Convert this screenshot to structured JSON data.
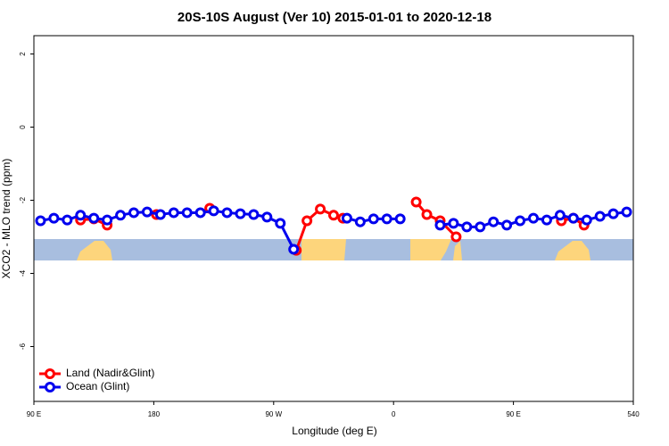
{
  "chart_data": {
    "type": "line",
    "title": "20S-10S August (Ver 10)   2015-01-01 to 2020-12-18",
    "x_label": "Longitude (deg E)",
    "y_label": "XCO2 - MLO trend (ppm)",
    "xlim": [
      90,
      540
    ],
    "ylim": [
      -7.5,
      2.5
    ],
    "xticks": [
      {
        "value": 90,
        "label": "90 E"
      },
      180,
      {
        "value": 270,
        "label": "90 W"
      },
      {
        "value": 360,
        "label": "0"
      },
      {
        "value": 450,
        "label": "90 E"
      },
      540
    ],
    "yticks": [
      -6,
      -4,
      -2,
      0,
      2
    ],
    "legend": "bottom-left",
    "series": [
      {
        "name": "Land (Nadir&Glint)",
        "color": "#ff0000",
        "x": [
          125,
          135,
          145,
          null,
          182,
          null,
          222,
          null,
          287,
          295,
          305,
          315,
          322,
          null,
          377,
          385,
          395,
          407,
          null,
          486,
          495,
          503
        ],
        "values": [
          -2.54,
          -2.51,
          -2.68,
          null,
          -2.39,
          null,
          -2.22,
          null,
          -3.37,
          -2.56,
          -2.24,
          -2.41,
          -2.49,
          null,
          -2.05,
          -2.39,
          -2.56,
          -3.0,
          null,
          -2.56,
          -2.49,
          -2.68
        ]
      },
      {
        "name": "Ocean (Glint)",
        "color": "#0000ee",
        "x": [
          95,
          105,
          115,
          125,
          135,
          145,
          155,
          165,
          175,
          185,
          195,
          205,
          215,
          225,
          235,
          245,
          255,
          265,
          275,
          285,
          295,
          305,
          315,
          325,
          335,
          345,
          355,
          365,
          375,
          385,
          395,
          405,
          415,
          425,
          435,
          445,
          455,
          465,
          475,
          485,
          495,
          505,
          515,
          525,
          535
        ],
        "values": [
          -2.56,
          -2.49,
          -2.54,
          -2.41,
          -2.49,
          -2.54,
          -2.41,
          -2.34,
          -2.32,
          -2.39,
          -2.34,
          -2.34,
          -2.34,
          -2.29,
          -2.34,
          -2.37,
          -2.39,
          -2.46,
          -2.63,
          -3.34,
          null,
          null,
          null,
          -2.49,
          -2.59,
          -2.51,
          -2.51,
          -2.51,
          null,
          null,
          -2.68,
          -2.63,
          -2.73,
          -2.73,
          -2.59,
          -2.68,
          -2.56,
          -2.49,
          -2.54,
          -2.41,
          -2.49,
          -2.54,
          -2.44,
          -2.37,
          -2.32
        ]
      }
    ]
  }
}
